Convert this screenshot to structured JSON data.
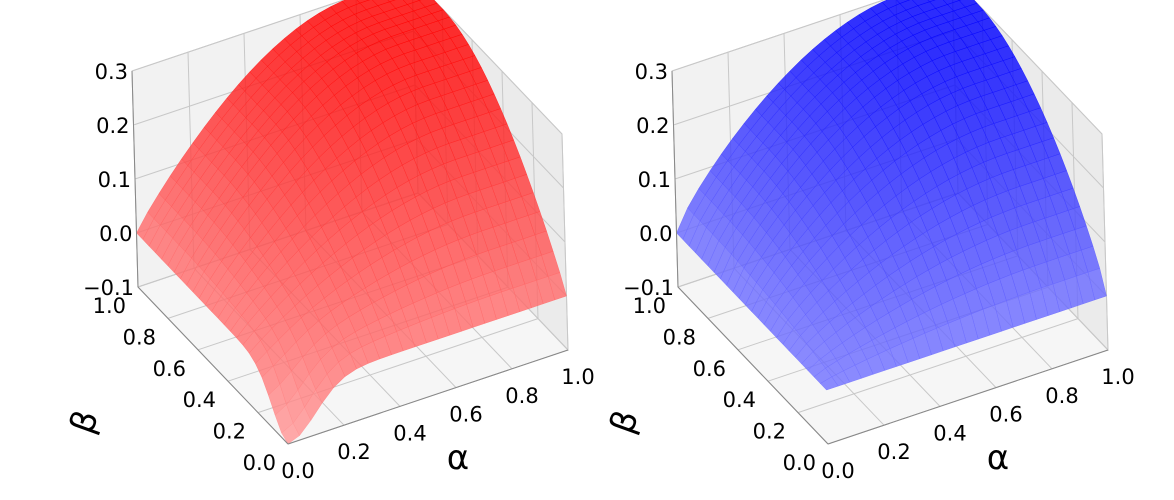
{
  "chart_data": [
    {
      "type": "surface",
      "color": "#ff0000",
      "xlabel": "α",
      "ylabel": "β",
      "zlabel": "",
      "xlim": [
        0,
        1
      ],
      "ylim": [
        0,
        1
      ],
      "zlim": [
        -0.1,
        0.3
      ],
      "x_ticks": [
        "0.0",
        "0.2",
        "0.4",
        "0.6",
        "0.8",
        "1.0"
      ],
      "y_ticks": [
        "0.0",
        "0.2",
        "0.4",
        "0.6",
        "0.8",
        "1.0"
      ],
      "z_ticks": [
        "−0.1",
        "0.0",
        "0.1",
        "0.2",
        "0.3"
      ],
      "grid": true,
      "surface_description": "z rises from ~0 on the alpha=0 and beta=0 edges to a plateau ~0.3 at high alpha and beta; dips slightly negative near alpha=beta=0"
    },
    {
      "type": "surface",
      "color": "#0000ff",
      "xlabel": "α",
      "ylabel": "β",
      "zlabel": "",
      "xlim": [
        0,
        1
      ],
      "ylim": [
        0,
        1
      ],
      "zlim": [
        -0.1,
        0.3
      ],
      "x_ticks": [
        "0.0",
        "0.2",
        "0.4",
        "0.6",
        "0.8",
        "1.0"
      ],
      "y_ticks": [
        "0.0",
        "0.2",
        "0.4",
        "0.6",
        "0.8",
        "1.0"
      ],
      "z_ticks": [
        "−0.1",
        "0.0",
        "0.1",
        "0.2",
        "0.3"
      ],
      "grid": true,
      "surface_description": "z rises from 0 on the alpha=0 and beta=0 edges to a plateau ~0.3 at high alpha and beta"
    }
  ]
}
